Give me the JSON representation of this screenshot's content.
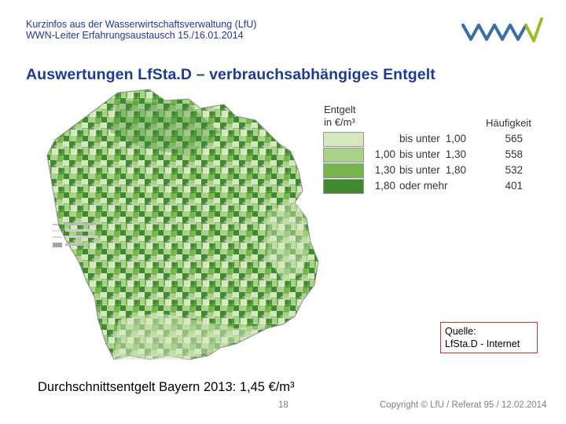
{
  "header": {
    "line1": "Kurzinfos aus der Wasserwirtschaftsverwaltung (LfU)",
    "line2": "WWN-Leiter Erfahrungsaustausch 15./16.01.2014"
  },
  "title": "Auswertungen LfSta.D – verbrauchsabhängiges Entgelt",
  "colors": {
    "header_blue": "#1f3a93",
    "logo_blue": "#3a6ea5",
    "logo_green": "#9bbf2a",
    "class1": "#d6e8c0",
    "class2": "#a9d18a",
    "class3": "#76b44e",
    "class4": "#3f8a2e",
    "source_border": "#c0392b"
  },
  "legend": {
    "title_line1": "Entgelt",
    "title_line2": "in €/m³",
    "freq_header": "Häufigkeit",
    "rows": [
      {
        "from": "",
        "label": "bis unter",
        "to": "1,00",
        "count": "565"
      },
      {
        "from": "1,00",
        "label": "bis unter",
        "to": "1,30",
        "count": "558"
      },
      {
        "from": "1,30",
        "label": "bis unter",
        "to": "1,80",
        "count": "532"
      },
      {
        "from": "1,80",
        "label": "oder mehr",
        "to": "",
        "count": "401"
      }
    ]
  },
  "source": {
    "line1": "Quelle:",
    "line2": "LfSta.D - Internet"
  },
  "average": "Durchschnittsentgelt Bayern 2013: 1,45 €/m³",
  "page_number": "18",
  "copyright": "Copyright © LfU / Referat 95 / 12.02.2014"
}
